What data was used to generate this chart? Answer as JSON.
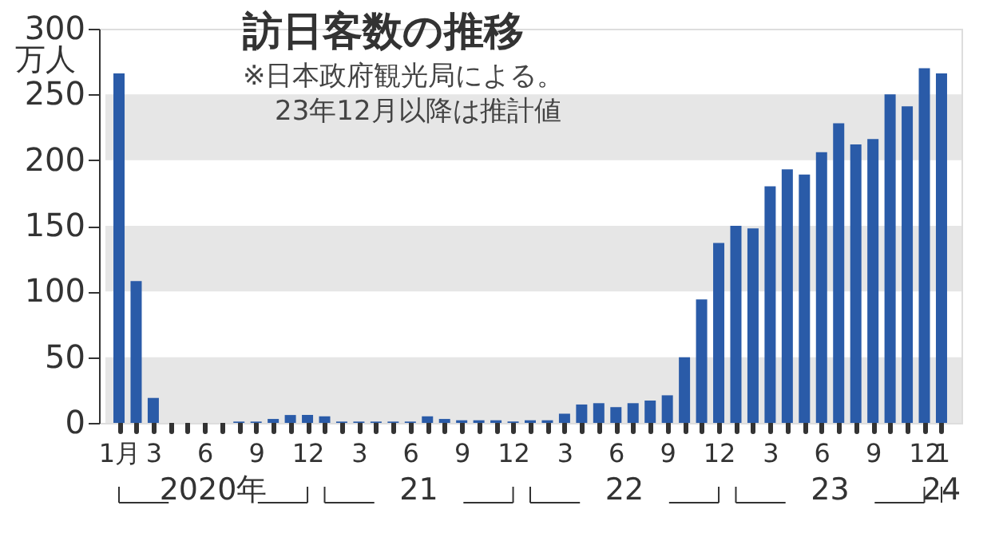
{
  "chart_data": {
    "type": "bar",
    "title": "訪日客数の推移",
    "subtitle": "※日本政府観光局による。\n23年12月以降は推計値",
    "ylabel": "万人",
    "categories": [
      "1月",
      null,
      "3",
      null,
      null,
      "6",
      null,
      null,
      "9",
      null,
      null,
      "12",
      null,
      null,
      "3",
      null,
      null,
      "6",
      null,
      null,
      "9",
      null,
      null,
      "12",
      null,
      null,
      "3",
      null,
      null,
      "6",
      null,
      null,
      "9",
      null,
      null,
      "12",
      null,
      null,
      "3",
      null,
      null,
      "6",
      null,
      null,
      "9",
      null,
      null,
      "12",
      "1"
    ],
    "values": [
      266,
      108,
      19,
      0,
      0,
      0,
      0,
      1,
      1,
      3,
      6,
      6,
      5,
      1,
      1,
      1,
      1,
      1,
      5,
      3,
      2,
      2,
      2,
      1,
      2,
      2,
      7,
      14,
      15,
      12,
      15,
      17,
      21,
      50,
      94,
      137,
      150,
      148,
      180,
      193,
      189,
      206,
      228,
      212,
      216,
      250,
      241,
      270,
      266
    ],
    "color": "#2a5ba8",
    "ylim": [
      0,
      300
    ],
    "yticks": [
      0,
      50,
      100,
      150,
      200,
      250,
      300
    ],
    "bands": [
      {
        "axis": "y",
        "from": 0,
        "to": 50,
        "color": "#e6e6e6"
      },
      {
        "axis": "y",
        "from": 100,
        "to": 150,
        "color": "#e6e6e6"
      },
      {
        "axis": "y",
        "from": 200,
        "to": 250,
        "color": "#e6e6e6"
      }
    ],
    "annotations": [
      "2020年",
      "21",
      "22",
      "23",
      "24"
    ],
    "tick_labels": [
      "x",
      "y"
    ]
  }
}
